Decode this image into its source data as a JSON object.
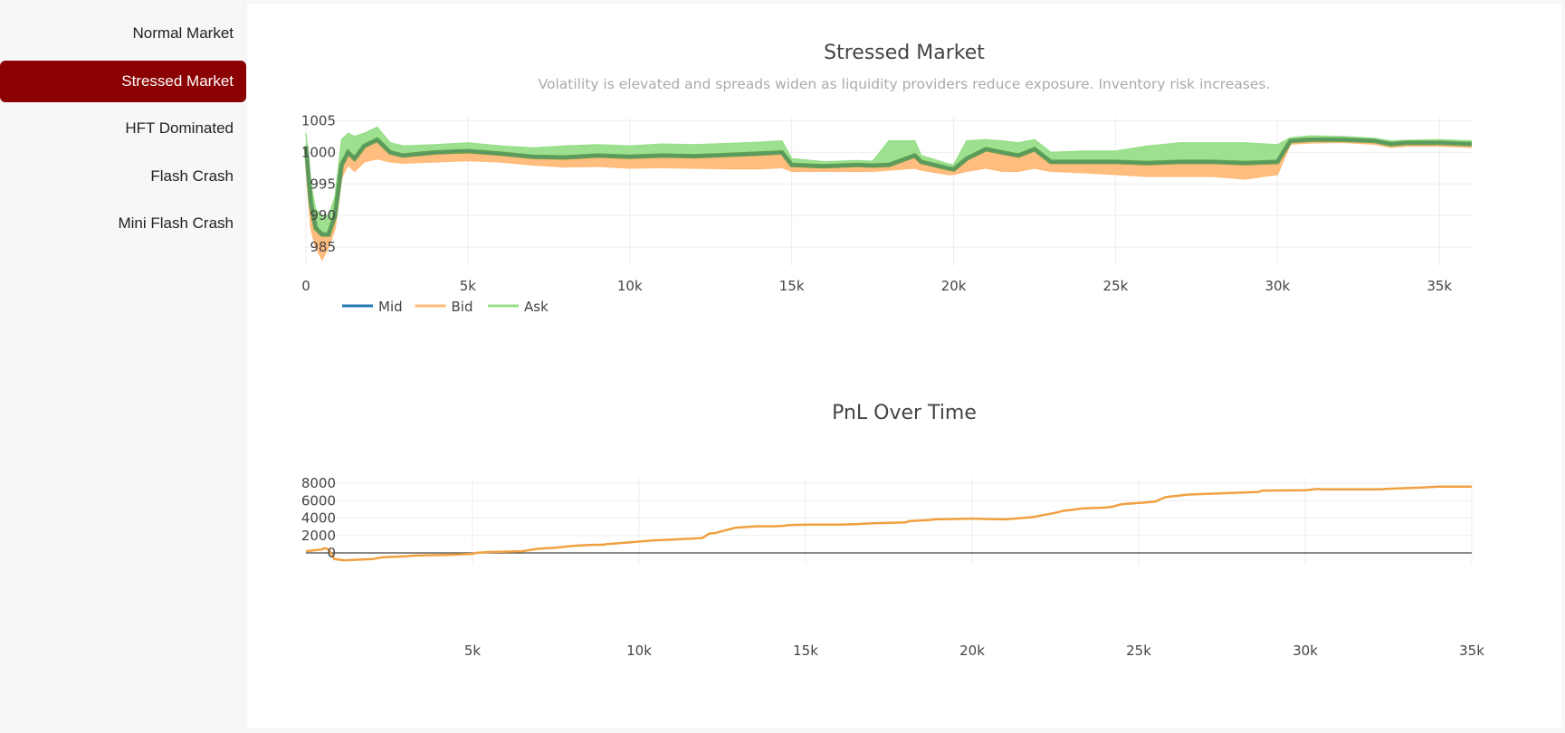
{
  "sidebar": {
    "items": [
      {
        "label": "Normal Market",
        "active": false
      },
      {
        "label": "Stressed Market",
        "active": true
      },
      {
        "label": "HFT Dominated",
        "active": false
      },
      {
        "label": "Flash Crash",
        "active": false
      },
      {
        "label": "Mini Flash Crash",
        "active": false
      }
    ]
  },
  "colors": {
    "accent": "#8b0000",
    "mid": "#1f77b4",
    "bid": "#ffbb78",
    "ask": "#98df8a",
    "overlap": "#5a9a4c",
    "pnl": "#f0a040"
  },
  "chart_data": [
    {
      "type": "line",
      "title": "Stressed Market",
      "subtitle": "Volatility is elevated and spreads widen as liquidity providers reduce exposure. Inventory risk increases.",
      "xlim": [
        0,
        36000
      ],
      "ylim": [
        982,
        1005.5
      ],
      "x_ticks": [
        0,
        5000,
        10000,
        15000,
        20000,
        25000,
        30000,
        35000
      ],
      "x_tick_labels": [
        "0",
        "5k",
        "10k",
        "15k",
        "20k",
        "25k",
        "30k",
        "35k"
      ],
      "y_ticks": [
        985,
        990,
        995,
        1000,
        1005
      ],
      "y_tick_labels": [
        "985",
        "990",
        "995",
        "1000",
        "1005"
      ],
      "grid": true,
      "legend": {
        "placement": "bottom-left",
        "orientation": "horizontal"
      },
      "series": [
        {
          "name": "Mid",
          "color": "#1f77b4"
        },
        {
          "name": "Bid",
          "color": "#ffbb78"
        },
        {
          "name": "Ask",
          "color": "#98df8a"
        }
      ],
      "x": [
        0,
        150,
        300,
        500,
        700,
        900,
        1100,
        1300,
        1500,
        1800,
        2200,
        2600,
        3000,
        4000,
        5000,
        6000,
        7000,
        8000,
        9000,
        10000,
        11000,
        12000,
        13000,
        14000,
        14700,
        15000,
        16000,
        17000,
        17500,
        18000,
        18800,
        19000,
        19800,
        20000,
        20400,
        21000,
        21500,
        22000,
        22500,
        23000,
        24000,
        25000,
        26000,
        27000,
        28000,
        29000,
        30000,
        30400,
        31000,
        32000,
        33000,
        33500,
        34000,
        35000,
        36000
      ],
      "mid": [
        1001,
        992,
        988,
        987,
        987,
        990,
        998,
        1000,
        999,
        1001,
        1002,
        1000,
        999.5,
        1000,
        1000.2,
        999.8,
        999.3,
        999.2,
        999.5,
        999.3,
        999.5,
        999.4,
        999.6,
        999.8,
        1000,
        998,
        997.8,
        998,
        997.9,
        998,
        999.5,
        998.5,
        997.5,
        997.3,
        999,
        1000.5,
        1000,
        999.5,
        1000.5,
        998.5,
        998.5,
        998.5,
        998.3,
        998.5,
        998.5,
        998.3,
        998.5,
        1001.8,
        1002,
        1002,
        1001.8,
        1001.3,
        1001.5,
        1001.5,
        1001.3
      ],
      "bid": [
        998,
        988,
        985,
        983,
        985,
        988,
        996,
        998,
        997,
        998.5,
        999,
        998.5,
        998.3,
        998.5,
        998.7,
        998.5,
        998,
        997.7,
        997.8,
        997.5,
        997.6,
        997.5,
        997.4,
        997.4,
        997.6,
        997,
        997,
        997,
        997,
        997.2,
        997.5,
        997.2,
        996.5,
        996.5,
        997,
        997.5,
        997,
        997,
        997.5,
        997,
        996.8,
        996.5,
        996.2,
        996.2,
        996.2,
        995.8,
        996.5,
        1001.3,
        1001.5,
        1001.6,
        1001.3,
        1000.8,
        1001,
        1001,
        1000.8
      ],
      "ask": [
        1003,
        995,
        991,
        990,
        990,
        993,
        1002,
        1003,
        1002.5,
        1003,
        1004,
        1001.5,
        1001,
        1001.2,
        1001.5,
        1001,
        1000.7,
        1001,
        1001.2,
        1001,
        1001.3,
        1001.2,
        1001.4,
        1001.6,
        1001.8,
        999,
        998.5,
        998.7,
        998.6,
        1001.8,
        1001.8,
        999.5,
        998.2,
        998,
        1001.8,
        1002,
        1001.8,
        1001.5,
        1002,
        1000,
        1000.2,
        1000.2,
        1001,
        1001.5,
        1001.5,
        1001.5,
        1001.2,
        1002.3,
        1002.6,
        1002.5,
        1002.2,
        1001.8,
        1001.9,
        1002,
        1001.8
      ]
    },
    {
      "type": "line",
      "title": "PnL Over Time",
      "xlim": [
        0,
        35000
      ],
      "ylim": [
        -1300,
        8600
      ],
      "x_ticks": [
        5000,
        10000,
        15000,
        20000,
        25000,
        30000,
        35000
      ],
      "x_tick_labels": [
        "5k",
        "10k",
        "15k",
        "20k",
        "25k",
        "30k",
        "35k"
      ],
      "y_ticks": [
        0,
        2000,
        4000,
        6000,
        8000
      ],
      "y_tick_labels": [
        "0",
        "2000",
        "4000",
        "6000",
        "8000"
      ],
      "grid": true,
      "series": [
        {
          "color": "#f0a040",
          "x": [
            0,
            500,
            550,
            650,
            700,
            850,
            1150,
            2000,
            2150,
            2300,
            3000,
            3100,
            3300,
            4000,
            4500,
            5000,
            5100,
            5500,
            6000,
            6500,
            7000,
            7500,
            8000,
            8500,
            8950,
            9000,
            10000,
            10500,
            10800,
            11900,
            12100,
            12300,
            12500,
            12700,
            12900,
            13300,
            13500,
            14000,
            14300,
            14500,
            15000,
            15500,
            16000,
            16500,
            17000,
            17500,
            18000,
            18100,
            18800,
            18900,
            19500,
            20000,
            20400,
            21000,
            21800,
            22500,
            22700,
            22800,
            23000,
            23300,
            24000,
            24200,
            24500,
            25200,
            25500,
            25800,
            26500,
            27500,
            28600,
            28700,
            30000,
            30400,
            30500,
            31000,
            32300,
            32400,
            33500,
            34000,
            35000
          ],
          "y": [
            200,
            420,
            550,
            450,
            300,
            -700,
            -850,
            -700,
            -600,
            -500,
            -400,
            -350,
            -300,
            -250,
            -200,
            -100,
            0,
            100,
            150,
            200,
            500,
            600,
            800,
            900,
            950,
            1000,
            1300,
            1450,
            1500,
            1700,
            2200,
            2300,
            2500,
            2700,
            2900,
            3000,
            3050,
            3050,
            3100,
            3200,
            3250,
            3250,
            3250,
            3300,
            3400,
            3450,
            3500,
            3650,
            3800,
            3850,
            3900,
            3950,
            3900,
            3850,
            4100,
            4600,
            4800,
            4850,
            4950,
            5100,
            5200,
            5300,
            5600,
            5800,
            5900,
            6400,
            6700,
            6850,
            7000,
            7150,
            7200,
            7350,
            7300,
            7300,
            7300,
            7350,
            7500,
            7600,
            7600
          ]
        }
      ]
    }
  ]
}
